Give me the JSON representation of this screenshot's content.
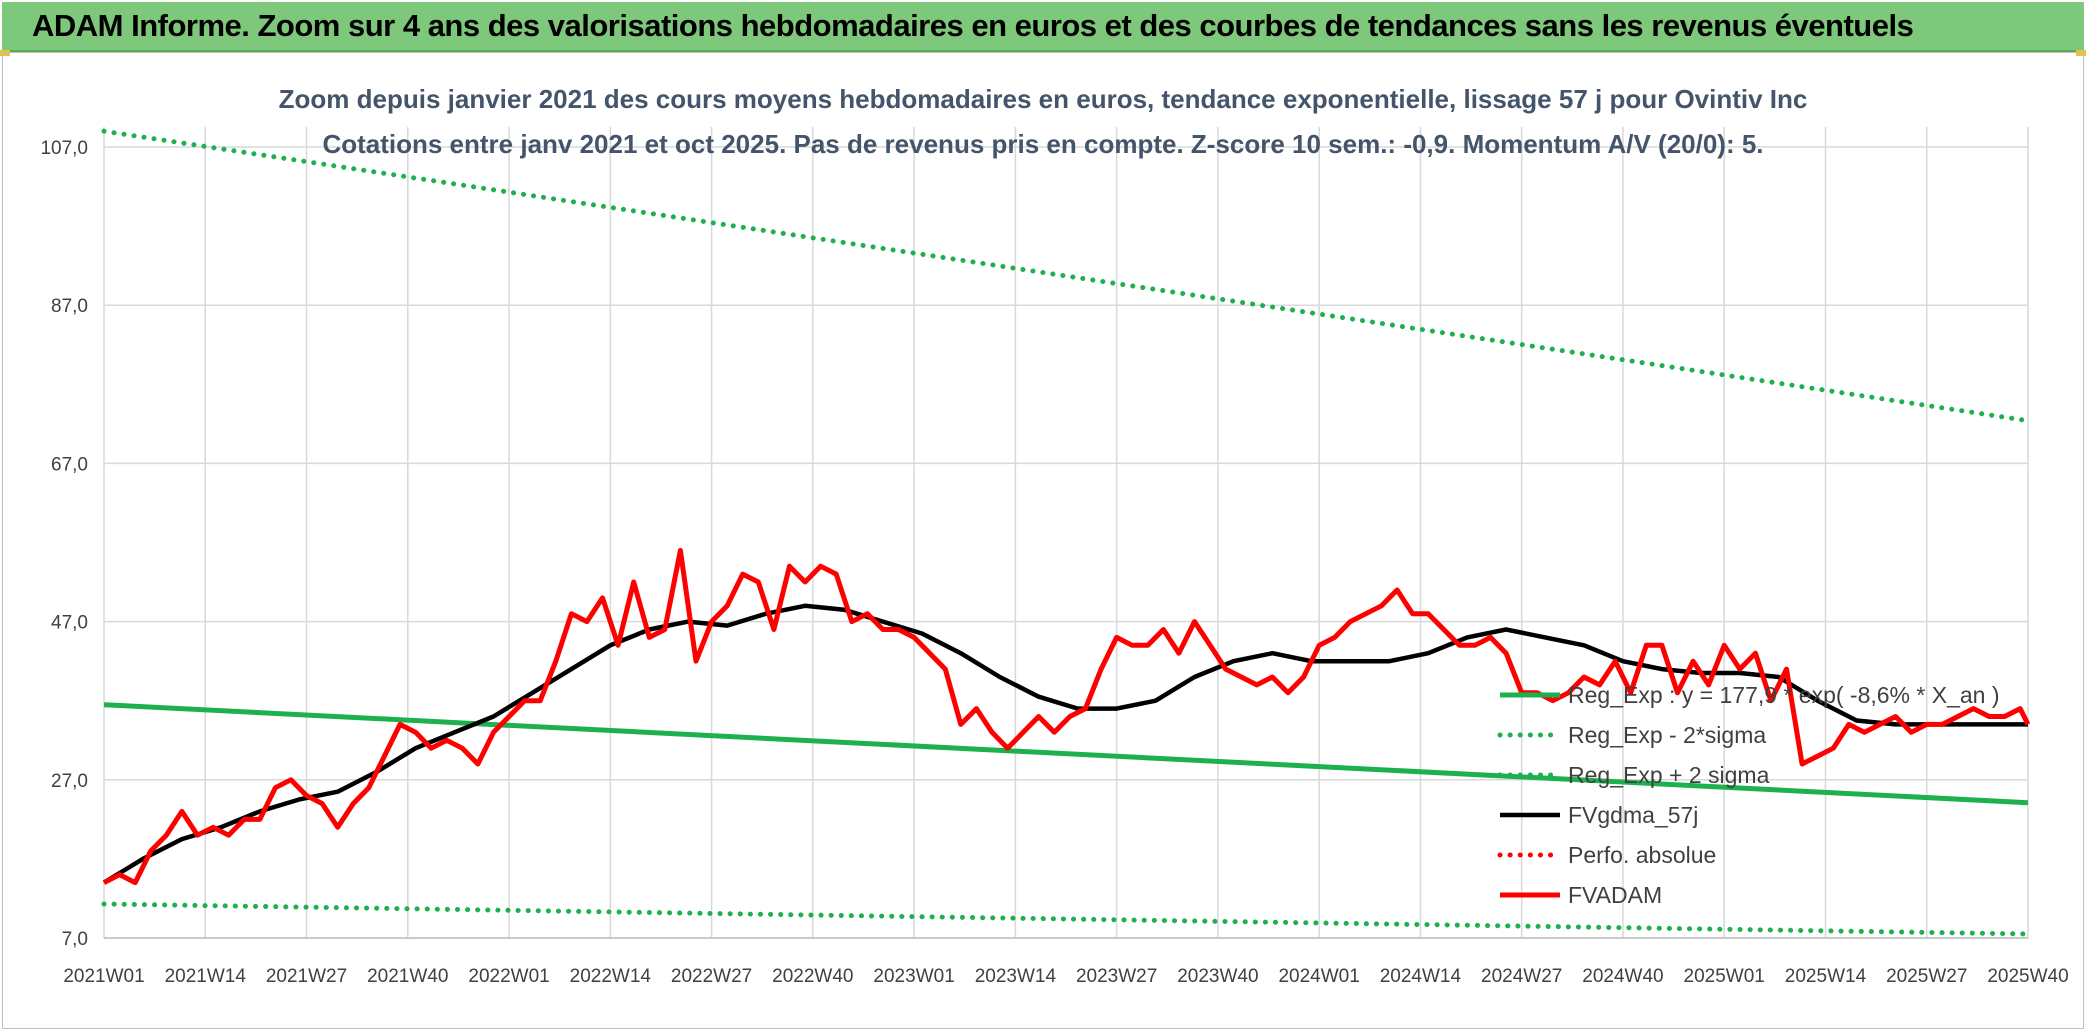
{
  "banner": {
    "title": "ADAM Informe. Zoom sur 4 ans des valorisations hebdomadaires en euros et des courbes de tendances sans les revenus éventuels"
  },
  "colors": {
    "banner_bg": "#7dc87a",
    "trend": "#1db04e",
    "smooth": "#000000",
    "price": "#ff0000",
    "grid": "#d9d9d9"
  },
  "chart_data": {
    "type": "line",
    "title": "Zoom depuis janvier 2021 des cours moyens hebdomadaires en euros, tendance exponentielle, lissage 57 j pour Ovintiv Inc",
    "subtitle": "Cotations entre janv 2021 et oct 2025. Pas de revenus pris en compte. Z-score 10 sem.: -0,9. Momentum A/V (20/0): 5.",
    "xlabel": "",
    "ylabel": "",
    "ylim": [
      7,
      107
    ],
    "y_ticks": [
      "107,0",
      "87,0",
      "67,0",
      "47,0",
      "27,0",
      "7,0"
    ],
    "y_tick_values": [
      107,
      87,
      67,
      47,
      27,
      7
    ],
    "x_tick_labels": [
      "2021W01",
      "2021W14",
      "2021W27",
      "2021W40",
      "2022W01",
      "2022W14",
      "2022W27",
      "2022W40",
      "2023W01",
      "2023W14",
      "2023W27",
      "2023W40",
      "2024W01",
      "2024W14",
      "2024W27",
      "2024W40",
      "2025W01",
      "2025W14",
      "2025W27",
      "2025W40"
    ],
    "x_tick_weeks": [
      0,
      13,
      26,
      39,
      52,
      65,
      78,
      91,
      104,
      117,
      130,
      143,
      156,
      169,
      182,
      195,
      208,
      221,
      234,
      247
    ],
    "grid": true,
    "legend_position": "right",
    "series": [
      {
        "name": "Reg_Exp : y = 177,9 * exp( -8,6% * X_an )",
        "style": "solid",
        "color": "#1db04e",
        "x": [
          0,
          247
        ],
        "values": [
          36.5,
          24.1
        ]
      },
      {
        "name": "Reg_Exp - 2*sigma",
        "style": "dotted",
        "color": "#1db04e",
        "x": [
          0,
          247
        ],
        "values": [
          11.3,
          7.5
        ]
      },
      {
        "name": "Reg_Exp + 2 sigma",
        "style": "dotted",
        "color": "#1db04e",
        "x": [
          0,
          247
        ],
        "values": [
          109,
          72.4
        ]
      },
      {
        "name": "FVgdma_57j",
        "style": "solid",
        "color": "#000000",
        "x": [
          0,
          5,
          10,
          15,
          20,
          25,
          30,
          35,
          40,
          45,
          50,
          55,
          60,
          65,
          70,
          75,
          80,
          85,
          90,
          95,
          100,
          105,
          110,
          115,
          120,
          125,
          130,
          135,
          140,
          145,
          150,
          155,
          160,
          165,
          170,
          175,
          180,
          185,
          190,
          195,
          200,
          205,
          210,
          215,
          220,
          225,
          230,
          235,
          240,
          245,
          247
        ],
        "values": [
          14,
          17,
          19.5,
          21,
          23,
          24.5,
          25.5,
          28,
          31,
          33,
          35,
          38,
          41,
          44,
          46,
          47,
          46.5,
          48,
          49,
          48.5,
          47,
          45.5,
          43,
          40,
          37.5,
          36,
          36,
          37,
          40,
          42,
          43,
          42,
          42,
          42,
          43,
          45,
          46,
          45,
          44,
          42,
          41,
          40.5,
          40.5,
          40,
          37,
          34.5,
          34,
          34,
          34,
          34,
          34
        ]
      },
      {
        "name": "Perfo. absolue",
        "style": "dotted",
        "color": "#ff0000",
        "x": [],
        "values": []
      },
      {
        "name": "FVADAM",
        "style": "solid",
        "color": "#ff0000",
        "x": [
          0,
          2,
          4,
          6,
          8,
          10,
          12,
          14,
          16,
          18,
          20,
          22,
          24,
          26,
          28,
          30,
          32,
          34,
          36,
          38,
          40,
          42,
          44,
          46,
          48,
          50,
          52,
          54,
          56,
          58,
          60,
          62,
          64,
          66,
          68,
          70,
          72,
          74,
          76,
          78,
          80,
          82,
          84,
          86,
          88,
          90,
          92,
          94,
          96,
          98,
          100,
          102,
          104,
          106,
          108,
          110,
          112,
          114,
          116,
          118,
          120,
          122,
          124,
          126,
          128,
          130,
          132,
          134,
          136,
          138,
          140,
          142,
          144,
          146,
          148,
          150,
          152,
          154,
          156,
          158,
          160,
          162,
          164,
          166,
          168,
          170,
          172,
          174,
          176,
          178,
          180,
          182,
          184,
          186,
          188,
          190,
          192,
          194,
          196,
          198,
          200,
          202,
          204,
          206,
          208,
          210,
          212,
          214,
          216,
          218,
          220,
          222,
          224,
          226,
          228,
          230,
          232,
          234,
          236,
          238,
          240,
          242,
          244,
          246,
          247
        ],
        "values": [
          14,
          15,
          14,
          18,
          20,
          23,
          20,
          21,
          20,
          22,
          22,
          26,
          27,
          25,
          24,
          21,
          24,
          26,
          30,
          34,
          33,
          31,
          32,
          31,
          29,
          33,
          35,
          37,
          37,
          42,
          48,
          47,
          50,
          44,
          52,
          45,
          46,
          56,
          42,
          47,
          49,
          53,
          52,
          46,
          54,
          52,
          54,
          53,
          47,
          48,
          46,
          46,
          45,
          43,
          41,
          34,
          36,
          33,
          31,
          33,
          35,
          33,
          35,
          36,
          41,
          45,
          44,
          44,
          46,
          43,
          47,
          44,
          41,
          40,
          39,
          40,
          38,
          40,
          44,
          45,
          47,
          48,
          49,
          51,
          48,
          48,
          46,
          44,
          44,
          45,
          43,
          38,
          38,
          37,
          38,
          40,
          39,
          42,
          38,
          44,
          44,
          38,
          42,
          39,
          44,
          41,
          43,
          37,
          41,
          29,
          30,
          31,
          34,
          33,
          34,
          35,
          33,
          34,
          34,
          35,
          36,
          35,
          35,
          36,
          34
        ]
      }
    ]
  }
}
